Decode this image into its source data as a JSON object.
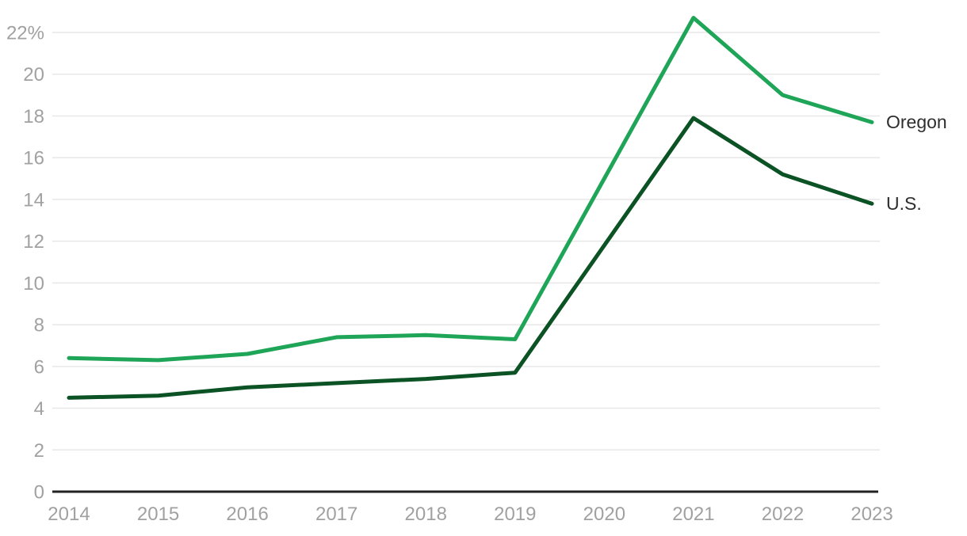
{
  "chart_data": {
    "type": "line",
    "categories": [
      "2014",
      "2015",
      "2016",
      "2017",
      "2018",
      "2019",
      "2020",
      "2021",
      "2022",
      "2023"
    ],
    "series": [
      {
        "name": "Oregon",
        "color": "#1fa558",
        "values": [
          6.4,
          6.3,
          6.6,
          7.4,
          7.5,
          7.3,
          15.0,
          22.7,
          19.0,
          17.7
        ]
      },
      {
        "name": "U.S.",
        "color": "#0b5224",
        "values": [
          4.5,
          4.6,
          5.0,
          5.2,
          5.4,
          5.7,
          11.8,
          17.9,
          15.2,
          13.8
        ]
      }
    ],
    "title": "",
    "xlabel": "",
    "ylabel": "",
    "ylim": [
      0,
      22.8
    ],
    "y_ticks": [
      0,
      2,
      4,
      6,
      8,
      10,
      12,
      14,
      16,
      18,
      20,
      22
    ],
    "y_tick_labels": [
      "0",
      "2",
      "4",
      "6",
      "8",
      "10",
      "12",
      "14",
      "16",
      "18",
      "20",
      "22%"
    ],
    "grid": "horizontal",
    "legend_position": "inline-right",
    "notes": "No marker shown at 2020; lines run straight between the 2019 and 2021 points (2020 values shown are the on-line values).",
    "colors": {
      "grid_line": "#e7e7e7",
      "axis_line": "#222222",
      "tick_text": "#a1a1a1",
      "series_label_text": "#2e2e2e",
      "background": "#ffffff"
    }
  }
}
